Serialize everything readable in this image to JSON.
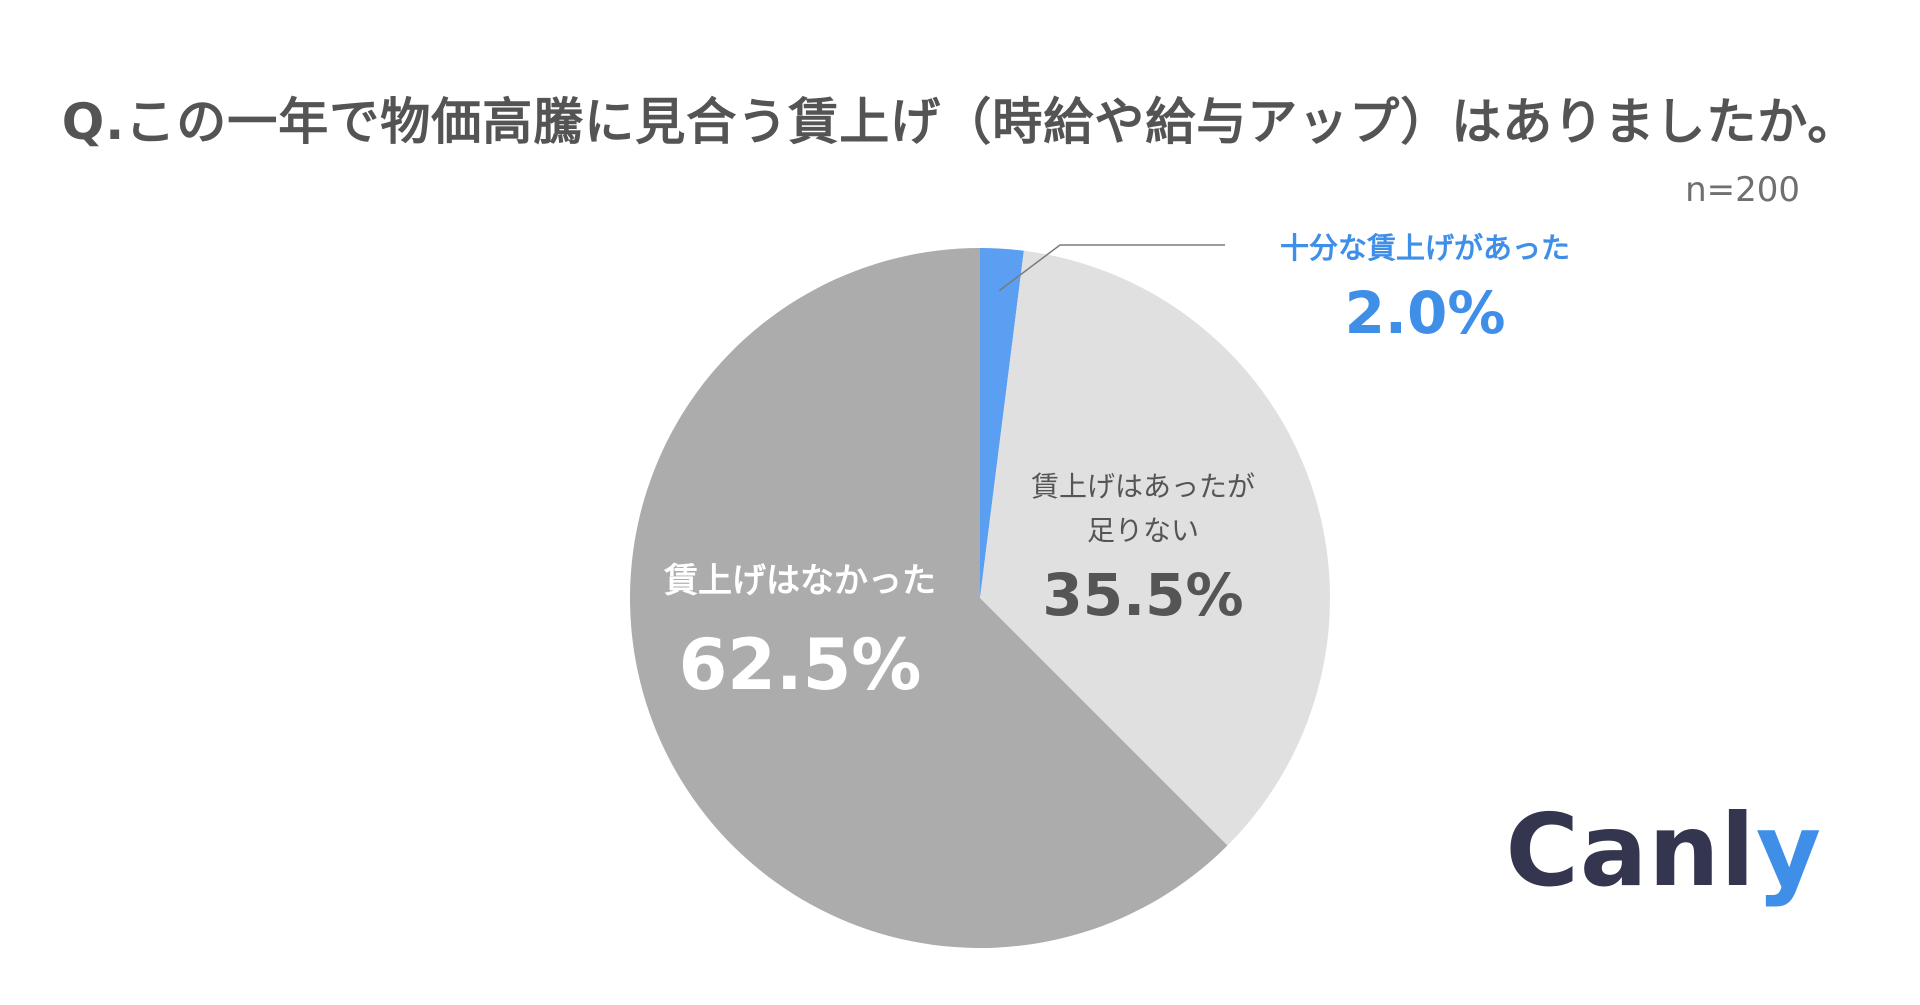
{
  "chart_data": {
    "type": "pie",
    "title": "Q.この一年で物価高騰に見合う賃上げ（時給や給与アップ）はありましたか。",
    "sample_size": "n=200",
    "start_angle_deg": 0,
    "direction": "clockwise",
    "slices": [
      {
        "id": "sufficient",
        "label": "十分な賃上げがあった",
        "value": 2.0,
        "display": "2.0%",
        "color": "#5a9ff2"
      },
      {
        "id": "insufficient",
        "label": "賃上げはあったが足りない",
        "display_lines": [
          "賃上げはあったが",
          "足りない"
        ],
        "value": 35.5,
        "display": "35.5%",
        "color": "#e0e0e0"
      },
      {
        "id": "none",
        "label": "賃上げはなかった",
        "value": 62.5,
        "display": "62.5%",
        "color": "#acacac"
      }
    ]
  },
  "brand": {
    "logo_text_main": "Canl",
    "logo_text_accent": "y",
    "accent_color": "#3f8fe8",
    "main_color": "#343650"
  }
}
